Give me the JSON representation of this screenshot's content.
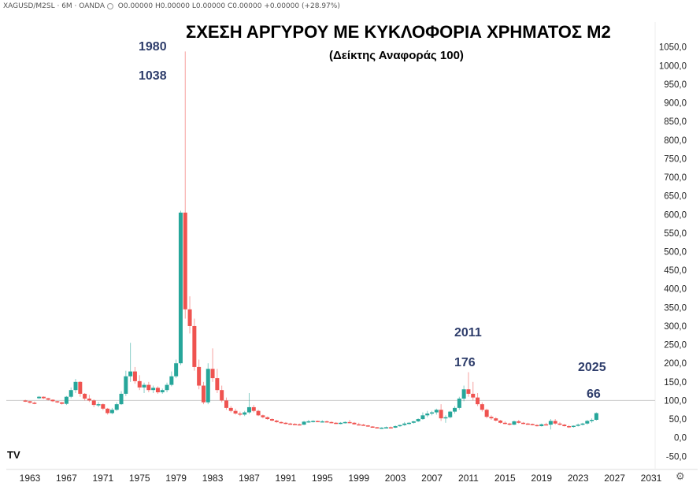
{
  "header": {
    "symbol": "XAGUSD/M2SL · 6M · OANDA",
    "o": "O0.00000",
    "h": "H0.00000",
    "l": "L0.00000",
    "c": "C0.00000",
    "change": "+0.00000 (+28.97%)"
  },
  "logo_icon": "tradingview-logo-icon",
  "settings_icon": "gear-icon",
  "colors": {
    "up": "#26a69a",
    "down": "#ef5350",
    "refline": "#cccccc",
    "annotation": "#2e3d6b"
  },
  "chart_data": {
    "type": "candlestick",
    "title": "ΣΧΕΣΗ ΑΡΓΥΡΟΥ ΜΕ ΚΥΚΛΟΦΟΡΙΑ ΧΡΗΜΑΤΟΣ Μ2",
    "subtitle": "(Δείκτης Αναφοράς 100)",
    "x_ticks": [
      "1963",
      "1967",
      "1971",
      "1975",
      "1979",
      "1983",
      "1987",
      "1991",
      "1995",
      "1999",
      "2003",
      "2007",
      "2011",
      "2015",
      "2019",
      "2023",
      "2027",
      "2031"
    ],
    "y_ticks": [
      "1050,0",
      "1000,0",
      "950,0",
      "900,0",
      "850,0",
      "800,0",
      "750,0",
      "700,0",
      "650,0",
      "600,0",
      "550,0",
      "500,0",
      "450,0",
      "400,0",
      "350,0",
      "300,0",
      "250,0",
      "200,0",
      "150,0",
      "100,0",
      "50,0",
      "0,0",
      "-50,0"
    ],
    "ylim": [
      -60,
      1060
    ],
    "xlim": [
      1962.5,
      2032
    ],
    "reference_line": 100,
    "annotations": [
      {
        "year_label": "1980",
        "value_label": "1038"
      },
      {
        "year_label": "2011",
        "value_label": "176"
      },
      {
        "year_label": "2025",
        "value_label": "66"
      }
    ],
    "ohlc": [
      [
        1962.5,
        100,
        102,
        96,
        98
      ],
      [
        1963.0,
        98,
        99,
        92,
        94
      ],
      [
        1963.5,
        94,
        97,
        90,
        92
      ],
      [
        1964.0,
        106,
        112,
        104,
        110
      ],
      [
        1964.5,
        110,
        111,
        104,
        106
      ],
      [
        1965.0,
        106,
        107,
        100,
        102
      ],
      [
        1965.5,
        102,
        103,
        96,
        98
      ],
      [
        1966.0,
        98,
        99,
        93,
        95
      ],
      [
        1966.5,
        95,
        96,
        89,
        91
      ],
      [
        1967.0,
        91,
        112,
        88,
        110
      ],
      [
        1967.5,
        110,
        135,
        106,
        128
      ],
      [
        1968.0,
        128,
        158,
        120,
        150
      ],
      [
        1968.5,
        150,
        152,
        110,
        118
      ],
      [
        1969.0,
        118,
        120,
        100,
        105
      ],
      [
        1969.5,
        105,
        115,
        96,
        100
      ],
      [
        1970.0,
        100,
        103,
        82,
        88
      ],
      [
        1970.5,
        88,
        96,
        82,
        90
      ],
      [
        1971.0,
        90,
        92,
        74,
        78
      ],
      [
        1971.5,
        78,
        80,
        62,
        66
      ],
      [
        1972.0,
        66,
        80,
        63,
        75
      ],
      [
        1972.5,
        75,
        95,
        72,
        90
      ],
      [
        1973.0,
        90,
        125,
        88,
        118
      ],
      [
        1973.5,
        118,
        180,
        112,
        165
      ],
      [
        1974.0,
        165,
        255,
        150,
        178
      ],
      [
        1974.5,
        178,
        190,
        145,
        152
      ],
      [
        1975.0,
        152,
        168,
        128,
        135
      ],
      [
        1975.5,
        135,
        148,
        120,
        142
      ],
      [
        1976.0,
        142,
        150,
        122,
        128
      ],
      [
        1976.5,
        128,
        140,
        120,
        134
      ],
      [
        1977.0,
        134,
        138,
        118,
        122
      ],
      [
        1977.5,
        122,
        132,
        118,
        128
      ],
      [
        1978.0,
        128,
        148,
        122,
        142
      ],
      [
        1978.5,
        142,
        178,
        138,
        165
      ],
      [
        1979.0,
        165,
        210,
        160,
        200
      ],
      [
        1979.5,
        200,
        610,
        195,
        605
      ],
      [
        1980.0,
        605,
        1038,
        320,
        345
      ],
      [
        1980.5,
        345,
        380,
        280,
        300
      ],
      [
        1981.0,
        300,
        320,
        180,
        190
      ],
      [
        1981.5,
        190,
        210,
        130,
        140
      ],
      [
        1982.0,
        140,
        150,
        90,
        95
      ],
      [
        1982.5,
        95,
        200,
        90,
        185
      ],
      [
        1983.0,
        185,
        240,
        150,
        160
      ],
      [
        1983.5,
        160,
        185,
        120,
        128
      ],
      [
        1984.0,
        128,
        140,
        95,
        100
      ],
      [
        1984.5,
        100,
        108,
        75,
        80
      ],
      [
        1985.0,
        80,
        85,
        68,
        72
      ],
      [
        1985.5,
        72,
        78,
        62,
        65
      ],
      [
        1986.0,
        65,
        70,
        58,
        62
      ],
      [
        1986.5,
        62,
        72,
        58,
        68
      ],
      [
        1987.0,
        68,
        120,
        64,
        82
      ],
      [
        1987.5,
        82,
        88,
        68,
        72
      ],
      [
        1988.0,
        72,
        75,
        58,
        60
      ],
      [
        1988.5,
        60,
        62,
        52,
        55
      ],
      [
        1989.0,
        55,
        57,
        48,
        50
      ],
      [
        1989.5,
        50,
        52,
        44,
        46
      ],
      [
        1990.0,
        46,
        48,
        40,
        42
      ],
      [
        1990.5,
        42,
        44,
        38,
        40
      ],
      [
        1991.0,
        40,
        42,
        36,
        38
      ],
      [
        1991.5,
        38,
        40,
        35,
        37
      ],
      [
        1992.0,
        37,
        39,
        34,
        36
      ],
      [
        1992.5,
        36,
        38,
        33,
        35
      ],
      [
        1993.0,
        35,
        45,
        34,
        43
      ],
      [
        1993.5,
        43,
        48,
        40,
        44
      ],
      [
        1994.0,
        44,
        47,
        41,
        45
      ],
      [
        1994.5,
        45,
        46,
        42,
        43
      ],
      [
        1995.0,
        43,
        47,
        41,
        44
      ],
      [
        1995.5,
        44,
        46,
        41,
        42
      ],
      [
        1996.0,
        42,
        44,
        39,
        40
      ],
      [
        1996.5,
        40,
        42,
        37,
        38
      ],
      [
        1997.0,
        38,
        42,
        36,
        40
      ],
      [
        1997.5,
        40,
        44,
        38,
        42
      ],
      [
        1998.0,
        42,
        48,
        39,
        40
      ],
      [
        1998.5,
        40,
        42,
        35,
        36
      ],
      [
        1999.0,
        36,
        40,
        33,
        35
      ],
      [
        1999.5,
        35,
        37,
        32,
        33
      ],
      [
        2000.0,
        33,
        34,
        29,
        30
      ],
      [
        2000.5,
        30,
        31,
        27,
        28
      ],
      [
        2001.0,
        28,
        29,
        25,
        26
      ],
      [
        2001.5,
        26,
        28,
        24,
        27
      ],
      [
        2002.0,
        27,
        30,
        25,
        28
      ],
      [
        2002.5,
        28,
        30,
        26,
        27
      ],
      [
        2003.0,
        27,
        33,
        26,
        31
      ],
      [
        2003.5,
        31,
        35,
        29,
        34
      ],
      [
        2004.0,
        34,
        42,
        32,
        38
      ],
      [
        2004.5,
        38,
        42,
        35,
        40
      ],
      [
        2005.0,
        40,
        45,
        38,
        44
      ],
      [
        2005.5,
        44,
        52,
        42,
        50
      ],
      [
        2006.0,
        50,
        68,
        48,
        60
      ],
      [
        2006.5,
        60,
        72,
        55,
        65
      ],
      [
        2007.0,
        65,
        72,
        60,
        68
      ],
      [
        2007.5,
        68,
        78,
        62,
        75
      ],
      [
        2008.0,
        75,
        90,
        45,
        52
      ],
      [
        2008.5,
        52,
        60,
        40,
        55
      ],
      [
        2009.0,
        55,
        72,
        52,
        70
      ],
      [
        2009.5,
        70,
        85,
        65,
        80
      ],
      [
        2010.0,
        80,
        110,
        75,
        105
      ],
      [
        2010.5,
        105,
        140,
        98,
        130
      ],
      [
        2011.0,
        130,
        176,
        110,
        118
      ],
      [
        2011.5,
        118,
        150,
        100,
        108
      ],
      [
        2012.0,
        108,
        120,
        85,
        90
      ],
      [
        2012.5,
        90,
        95,
        70,
        75
      ],
      [
        2013.0,
        75,
        78,
        52,
        56
      ],
      [
        2013.5,
        56,
        60,
        48,
        52
      ],
      [
        2014.0,
        52,
        55,
        44,
        46
      ],
      [
        2014.5,
        46,
        48,
        38,
        40
      ],
      [
        2015.0,
        40,
        44,
        36,
        38
      ],
      [
        2015.5,
        38,
        40,
        33,
        35
      ],
      [
        2016.0,
        35,
        46,
        34,
        44
      ],
      [
        2016.5,
        44,
        48,
        38,
        40
      ],
      [
        2017.0,
        40,
        42,
        36,
        38
      ],
      [
        2017.5,
        38,
        40,
        35,
        37
      ],
      [
        2018.0,
        37,
        38,
        33,
        34
      ],
      [
        2018.5,
        34,
        36,
        30,
        31
      ],
      [
        2019.0,
        31,
        38,
        30,
        36
      ],
      [
        2019.5,
        36,
        40,
        33,
        35
      ],
      [
        2020.0,
        35,
        50,
        22,
        45
      ],
      [
        2020.5,
        45,
        50,
        35,
        38
      ],
      [
        2021.0,
        38,
        42,
        33,
        35
      ],
      [
        2021.5,
        35,
        37,
        30,
        31
      ],
      [
        2022.0,
        31,
        34,
        26,
        29
      ],
      [
        2022.5,
        29,
        33,
        27,
        32
      ],
      [
        2023.0,
        32,
        38,
        30,
        35
      ],
      [
        2023.5,
        35,
        40,
        33,
        38
      ],
      [
        2024.0,
        38,
        48,
        35,
        45
      ],
      [
        2024.5,
        45,
        52,
        40,
        48
      ],
      [
        2025.0,
        48,
        68,
        46,
        66
      ]
    ]
  }
}
